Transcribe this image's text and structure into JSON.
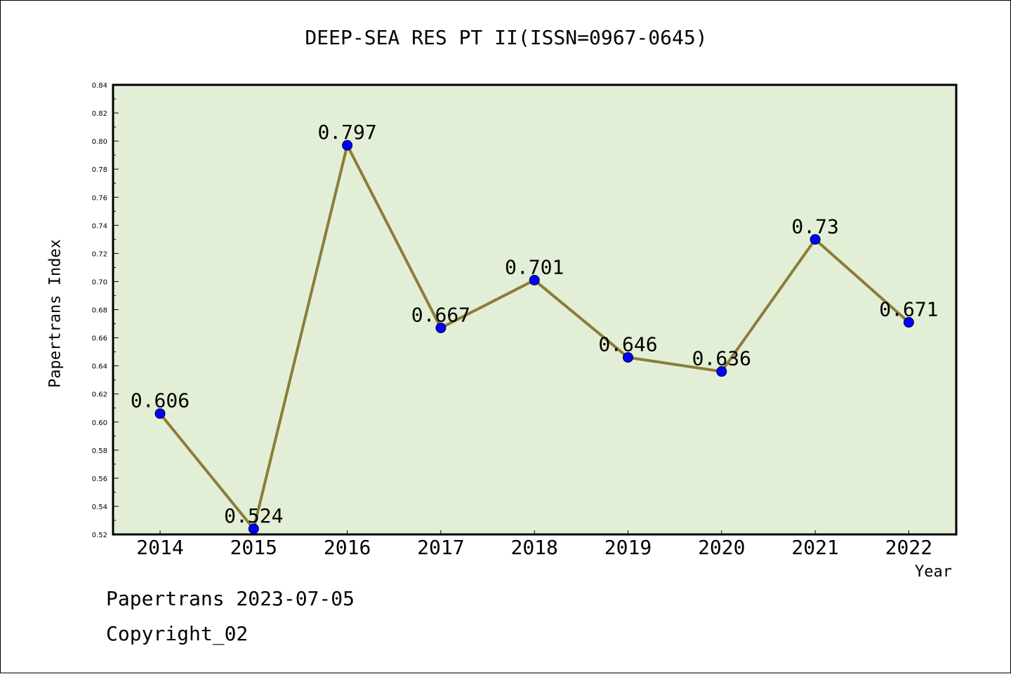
{
  "chart_data": {
    "type": "line",
    "title": "DEEP-SEA RES PT II(ISSN=0967-0645)",
    "xlabel": "Year",
    "ylabel": "Papertrans Index",
    "categories": [
      "2014",
      "2015",
      "2016",
      "2017",
      "2018",
      "2019",
      "2020",
      "2021",
      "2022"
    ],
    "series": [
      {
        "values": [
          0.606,
          0.524,
          0.797,
          0.667,
          0.701,
          0.646,
          0.636,
          0.73,
          0.671
        ]
      }
    ],
    "data_labels": [
      "0.606",
      "0.524",
      "0.797",
      "0.667",
      "0.701",
      "0.646",
      "0.636",
      "0.73",
      "0.671"
    ],
    "ylim": [
      0.52,
      0.84
    ],
    "yticks": [
      "0.52",
      "0.54",
      "0.56",
      "0.58",
      "0.60",
      "0.62",
      "0.64",
      "0.66",
      "0.68",
      "0.70",
      "0.72",
      "0.74",
      "0.76",
      "0.78",
      "0.80",
      "0.82",
      "0.84"
    ],
    "grid": false,
    "colors": {
      "line": "#8b7d3a",
      "marker": "#0000ff",
      "plot_background": "#e2efd6"
    }
  },
  "footer": {
    "line1": "Papertrans 2023-07-05",
    "line2": "Copyright_02"
  }
}
